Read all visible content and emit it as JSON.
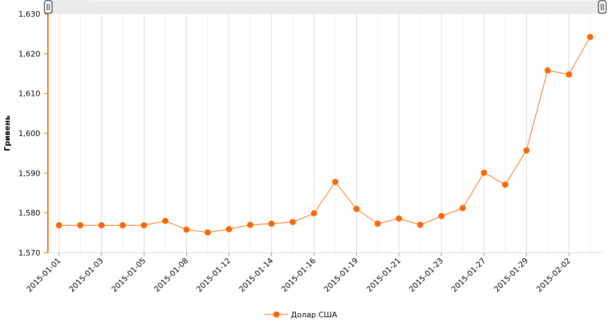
{
  "chart_data": {
    "type": "line",
    "title": "",
    "xlabel": "",
    "ylabel": "Гривень",
    "ylim": [
      1570,
      1630
    ],
    "yticks": [
      "1,570",
      "1,580",
      "1,590",
      "1,600",
      "1,610",
      "1,620",
      "1,630"
    ],
    "ytick_values": [
      1570,
      1580,
      1590,
      1600,
      1610,
      1620,
      1630
    ],
    "x_tick_labels": [
      "2015-01-01",
      "2015-01-03",
      "2015-01-05",
      "2015-01-08",
      "2015-01-12",
      "2015-01-14",
      "2015-01-16",
      "2015-01-19",
      "2015-01-21",
      "2015-01-23",
      "2015-01-27",
      "2015-01-29",
      "2015-02-02"
    ],
    "grid": true,
    "legend_position": "bottom-center",
    "series": [
      {
        "name": "Долар США",
        "color": "#ff6600",
        "values": [
          1576.9,
          1576.9,
          1576.9,
          1576.9,
          1576.9,
          1578.0,
          1575.8,
          1575.1,
          1575.9,
          1577.0,
          1577.3,
          1577.7,
          1579.9,
          1587.8,
          1581.0,
          1577.3,
          1578.6,
          1577.0,
          1579.2,
          1581.2,
          1590.1,
          1587.1,
          1595.7,
          1615.8,
          1614.8,
          1624.2
        ]
      }
    ]
  }
}
